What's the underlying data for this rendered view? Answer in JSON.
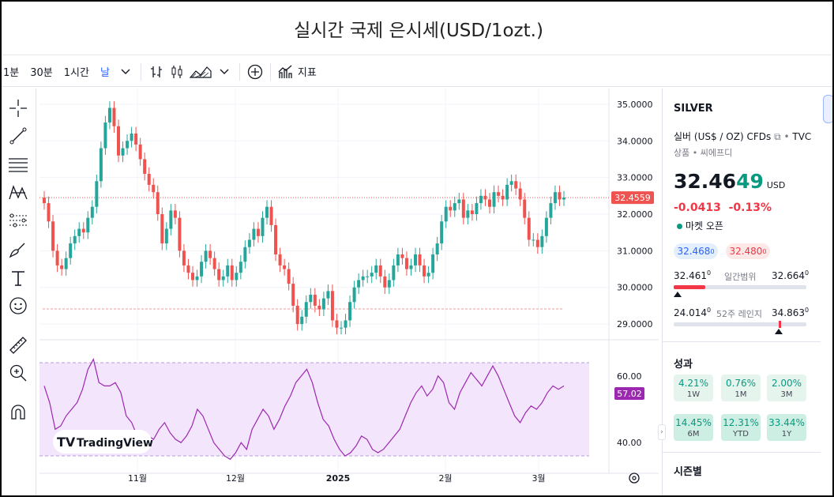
{
  "page_title": "실시간 국제 은시세(USD/1ozt.)",
  "toolbar": {
    "intervals": [
      "1분",
      "30분",
      "1시간",
      "날"
    ],
    "indicators_label": "지표"
  },
  "chart": {
    "price_ticks": [
      "35.0000",
      "34.0000",
      "33.0000",
      "32.0000",
      "31.0000",
      "30.0000",
      "29.0000"
    ],
    "rsi_ticks": [
      "60.00",
      "40.00"
    ],
    "time_labels": [
      "11월",
      "12월",
      "2025",
      "2월",
      "3월"
    ],
    "last_price_label": "32.4559",
    "rsi_label": "57.02",
    "watermark": "TradingView",
    "colors": {
      "up": "#26a69a",
      "down": "#ef5350",
      "rsi": "#9c27b0",
      "rsi_band": "#f3e5fc"
    }
  },
  "chart_data": {
    "type": "candlestick",
    "series": [
      {
        "name": "price",
        "values": [
          32.3,
          31.8,
          31.0,
          30.6,
          30.5,
          30.8,
          31.2,
          31.4,
          31.6,
          31.5,
          31.9,
          32.2,
          32.9,
          33.8,
          34.5,
          34.9,
          34.4,
          33.6,
          33.8,
          34.0,
          34.2,
          33.9,
          33.5,
          33.1,
          32.8,
          32.6,
          32.0,
          31.2,
          31.6,
          32.1,
          31.9,
          31.0,
          30.6,
          30.4,
          30.2,
          30.3,
          30.7,
          31.0,
          30.8,
          30.5,
          30.2,
          30.3,
          30.6,
          30.2,
          30.4,
          30.7,
          31.1,
          31.3,
          31.6,
          31.4,
          31.9,
          32.2,
          31.7,
          30.9,
          30.6,
          30.5,
          30.1,
          29.5,
          29.0,
          29.2,
          29.6,
          29.8,
          29.5,
          29.4,
          29.7,
          29.9,
          29.1,
          28.9,
          28.9,
          29.1,
          29.6,
          30.0,
          30.2,
          30.3,
          30.3,
          30.4,
          30.6,
          30.3,
          30.0,
          30.2,
          30.6,
          30.9,
          30.8,
          30.5,
          30.6,
          30.9,
          30.6,
          30.3,
          30.4,
          30.9,
          31.2,
          31.8,
          32.2,
          32.1,
          32.3,
          32.4,
          31.9,
          32.1,
          32.0,
          32.3,
          32.5,
          32.4,
          32.2,
          32.6,
          32.5,
          32.4,
          32.8,
          32.9,
          32.7,
          32.4,
          31.9,
          31.3,
          31.3,
          31.1,
          31.4,
          31.9,
          32.3,
          32.6,
          32.4,
          32.45
        ]
      },
      {
        "name": "RSI",
        "values": [
          57,
          52,
          44,
          45,
          48,
          50,
          52,
          56,
          62,
          65,
          58,
          57,
          57,
          58,
          55,
          48,
          46,
          42,
          40,
          42,
          41,
          44,
          46,
          43,
          41,
          40,
          42,
          45,
          50,
          48,
          44,
          40,
          38,
          36,
          35,
          37,
          40,
          38,
          44,
          47,
          50,
          48,
          44,
          47,
          51,
          54,
          58,
          60,
          62,
          58,
          52,
          47,
          45,
          41,
          38,
          36,
          37,
          39,
          42,
          41,
          38,
          37,
          38,
          40,
          42,
          44,
          48,
          52,
          55,
          57,
          54,
          56,
          60,
          58,
          52,
          50,
          55,
          58,
          61,
          59,
          57,
          60,
          63,
          60,
          56,
          52,
          48,
          46,
          49,
          51,
          50,
          52,
          55,
          57,
          56,
          57.02
        ]
      }
    ],
    "ylim": [
      28.7,
      35.3
    ],
    "rsi_ylim": [
      32,
      68
    ]
  },
  "panel": {
    "symbol": "SILVER",
    "description": "실버 (US$ / OZ) CFDs",
    "source": "TVC",
    "category": "상품 • 씨에프디",
    "price_main": "32.46",
    "price_frac": "49",
    "currency": "USD",
    "change": "-0.0413",
    "change_pct": "-0.13%",
    "market_status": "마켓 오픈",
    "bid": "32.468",
    "bid_sup": "0",
    "ask": "32.480",
    "ask_sup": "0",
    "day_low": "32.461",
    "day_low_sup": "0",
    "day_range_label": "일간범위",
    "day_high": "32.664",
    "day_high_sup": "0",
    "wk_low": "24.014",
    "wk_low_sup": "0",
    "wk_range_label": "52주 레인지",
    "wk_high": "34.863",
    "wk_high_sup": "0",
    "perf_title": "성과",
    "performance": [
      {
        "value": "4.21%",
        "period": "1W"
      },
      {
        "value": "0.76%",
        "period": "1M"
      },
      {
        "value": "2.00%",
        "period": "3M"
      },
      {
        "value": "14.45%",
        "period": "6M"
      },
      {
        "value": "12.31%",
        "period": "YTD"
      },
      {
        "value": "33.44%",
        "period": "1Y"
      }
    ],
    "seasonal_title": "시즌별"
  }
}
